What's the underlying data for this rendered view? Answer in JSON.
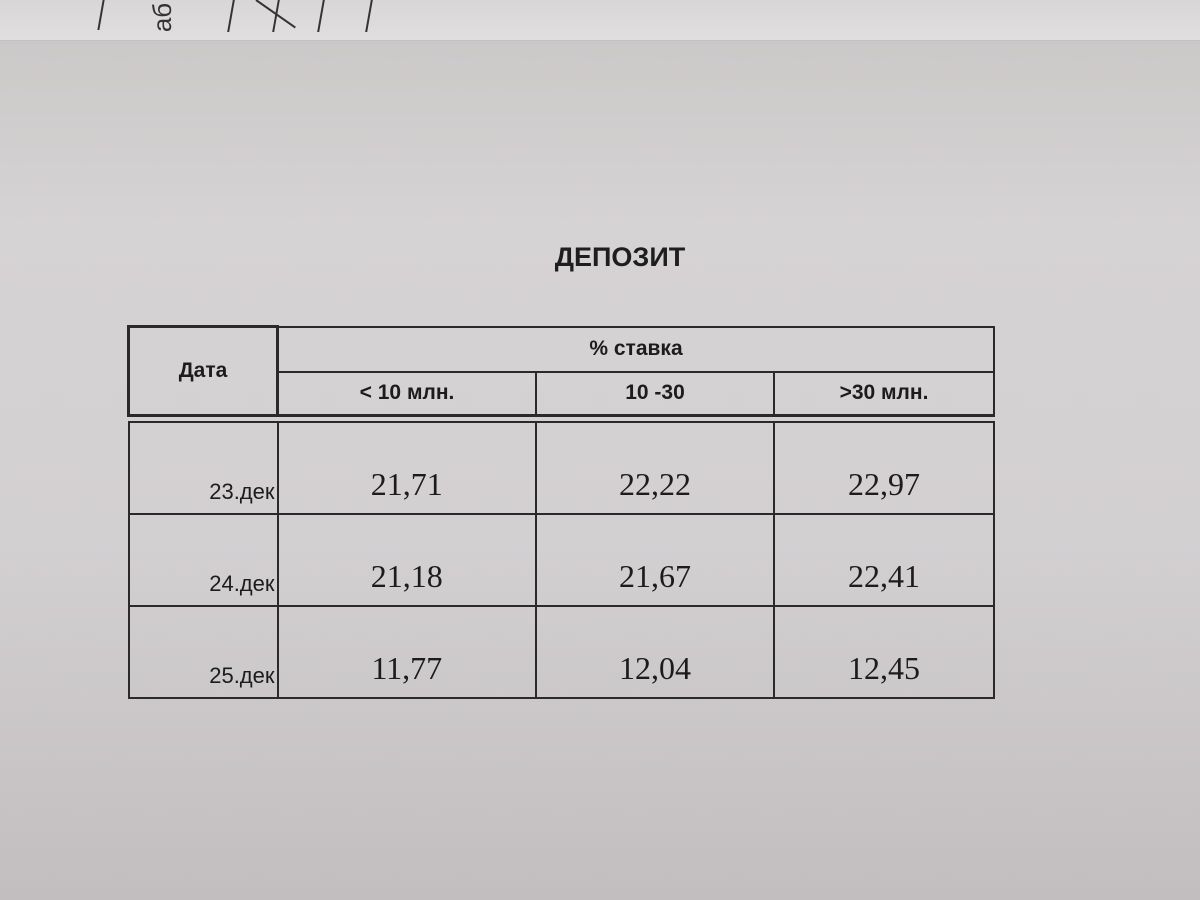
{
  "background_sheet": {
    "fragment_text": "аб"
  },
  "document": {
    "title": "ДЕПОЗИТ",
    "table": {
      "date_header": "Дата",
      "group_header": "% ставка",
      "columns": [
        "< 10 млн.",
        "10 -30",
        ">30 млн."
      ],
      "rows": [
        {
          "date": "23.дек",
          "values": [
            "21,71",
            "22,22",
            "22,97"
          ]
        },
        {
          "date": "24.дек",
          "values": [
            "21,18",
            "21,67",
            "22,41"
          ]
        },
        {
          "date": "25.дек",
          "values": [
            "11,77",
            "12,04",
            "12,45"
          ]
        }
      ]
    }
  }
}
